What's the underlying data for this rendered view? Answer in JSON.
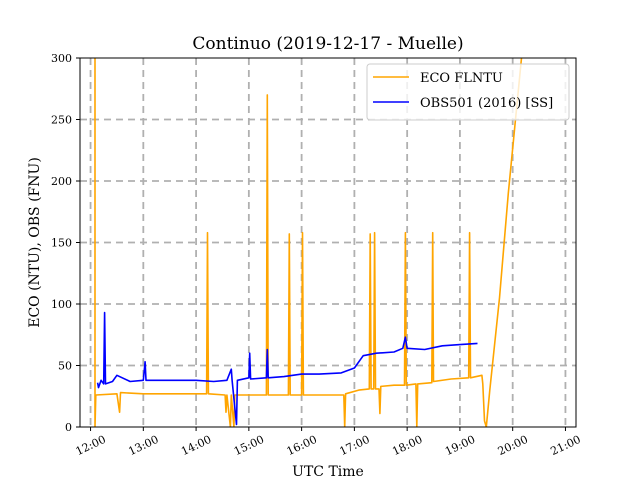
{
  "chart_data": {
    "type": "line",
    "title": "Continuo (2019-12-17 - Muelle)",
    "xlabel": "UTC Time",
    "ylabel": "ECO (NTU), OBS (FNU)",
    "xlim": [
      "11:48",
      "21:12"
    ],
    "ylim": [
      0,
      300
    ],
    "x_ticks": [
      "12:00",
      "13:00",
      "14:00",
      "15:00",
      "16:00",
      "17:00",
      "18:00",
      "19:00",
      "20:00",
      "21:00"
    ],
    "y_ticks": [
      0,
      50,
      100,
      150,
      200,
      250,
      300
    ],
    "grid": true,
    "grid_style": "dashed",
    "legend_position": "top-right",
    "colors": {
      "eco": "#ffa500",
      "obs": "#0000ff",
      "grid": "#b0b0b0"
    },
    "series": [
      {
        "name": "ECO FLNTU",
        "color": "#ffa500",
        "points": [
          [
            "12:05",
            300
          ],
          [
            "12:05",
            0
          ],
          [
            "12:06",
            26
          ],
          [
            "12:30",
            27
          ],
          [
            "12:33",
            12
          ],
          [
            "12:34",
            28
          ],
          [
            "13:00",
            27
          ],
          [
            "13:30",
            27
          ],
          [
            "14:12",
            27
          ],
          [
            "14:13",
            158
          ],
          [
            "14:14",
            27
          ],
          [
            "14:33",
            26
          ],
          [
            "14:34",
            12
          ],
          [
            "14:35",
            26
          ],
          [
            "14:39",
            0
          ],
          [
            "14:40",
            26
          ],
          [
            "14:43",
            0
          ],
          [
            "14:44",
            26
          ],
          [
            "15:00",
            26
          ],
          [
            "15:20",
            26
          ],
          [
            "15:21",
            270
          ],
          [
            "15:22",
            26
          ],
          [
            "15:45",
            26
          ],
          [
            "15:46",
            157
          ],
          [
            "15:47",
            26
          ],
          [
            "16:00",
            26
          ],
          [
            "16:01",
            158
          ],
          [
            "16:02",
            26
          ],
          [
            "16:30",
            26
          ],
          [
            "16:48",
            26
          ],
          [
            "16:49",
            0
          ],
          [
            "16:50",
            27
          ],
          [
            "17:05",
            30
          ],
          [
            "17:17",
            31
          ],
          [
            "17:18",
            157
          ],
          [
            "17:19",
            31
          ],
          [
            "17:22",
            31
          ],
          [
            "17:23",
            158
          ],
          [
            "17:24",
            31
          ],
          [
            "17:28",
            31
          ],
          [
            "17:29",
            11
          ],
          [
            "17:30",
            33
          ],
          [
            "17:45",
            34
          ],
          [
            "17:57",
            34
          ],
          [
            "17:58",
            158
          ],
          [
            "17:59",
            34
          ],
          [
            "18:10",
            35
          ],
          [
            "18:11",
            0
          ],
          [
            "18:12",
            35
          ],
          [
            "18:28",
            36
          ],
          [
            "18:29",
            158
          ],
          [
            "18:30",
            37
          ],
          [
            "18:50",
            39
          ],
          [
            "19:10",
            40
          ],
          [
            "19:11",
            158
          ],
          [
            "19:12",
            40
          ],
          [
            "19:25",
            42
          ],
          [
            "19:26",
            35
          ],
          [
            "19:28",
            5
          ],
          [
            "19:30",
            0
          ],
          [
            "19:34",
            30
          ],
          [
            "19:45",
            105
          ],
          [
            "19:55",
            190
          ],
          [
            "20:10",
            300
          ]
        ]
      },
      {
        "name": "OBS501 (2016) [SS]",
        "color": "#0000ff",
        "points": [
          [
            "12:08",
            36
          ],
          [
            "12:09",
            32
          ],
          [
            "12:12",
            38
          ],
          [
            "12:15",
            35
          ],
          [
            "12:16",
            93
          ],
          [
            "12:17",
            35
          ],
          [
            "12:25",
            37
          ],
          [
            "12:30",
            42
          ],
          [
            "12:45",
            37
          ],
          [
            "13:00",
            38
          ],
          [
            "13:02",
            53
          ],
          [
            "13:03",
            38
          ],
          [
            "13:30",
            38
          ],
          [
            "14:00",
            38
          ],
          [
            "14:20",
            37
          ],
          [
            "14:35",
            38
          ],
          [
            "14:40",
            47
          ],
          [
            "14:41",
            38
          ],
          [
            "14:46",
            2
          ],
          [
            "14:47",
            38
          ],
          [
            "15:00",
            40
          ],
          [
            "15:01",
            60
          ],
          [
            "15:02",
            39
          ],
          [
            "15:20",
            40
          ],
          [
            "15:21",
            63
          ],
          [
            "15:22",
            40
          ],
          [
            "15:40",
            41
          ],
          [
            "16:00",
            43
          ],
          [
            "16:20",
            43
          ],
          [
            "16:45",
            44
          ],
          [
            "17:00",
            48
          ],
          [
            "17:10",
            58
          ],
          [
            "17:25",
            60
          ],
          [
            "17:45",
            61
          ],
          [
            "17:55",
            64
          ],
          [
            "17:58",
            73
          ],
          [
            "18:00",
            64
          ],
          [
            "18:20",
            63
          ],
          [
            "18:40",
            66
          ],
          [
            "19:00",
            67
          ],
          [
            "19:20",
            68
          ]
        ]
      }
    ]
  }
}
